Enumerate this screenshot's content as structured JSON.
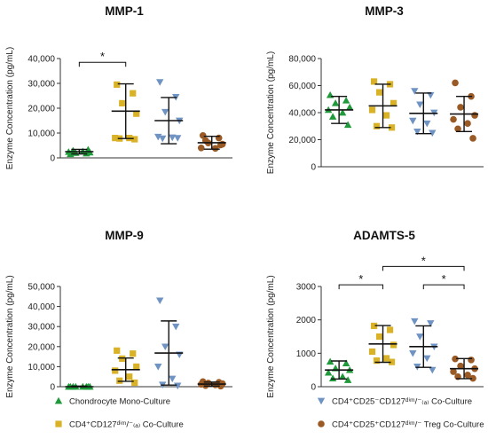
{
  "colors": {
    "chondrocyte": "#1f9a3a",
    "cd4_cd127": "#d9b228",
    "cd4_cd25neg": "#6f93c2",
    "treg": "#9a5a26",
    "axis": "#333333",
    "summary": "#111111"
  },
  "legend": [
    {
      "shape": "triangle",
      "color_key": "chondrocyte",
      "text": "Chondrocyte Mono-Culture"
    },
    {
      "shape": "square",
      "color_key": "cd4_cd127",
      "text": "CD4⁺CD127ᵈⁱᵐ/⁻₍ₐ₎ Co-Culture"
    },
    {
      "shape": "tridown",
      "color_key": "cd4_cd25neg",
      "text": "CD4⁺CD25⁻CD127ᵈⁱᵐ/⁻₍ₐ₎ Co-Culture"
    },
    {
      "shape": "circle",
      "color_key": "treg",
      "text": "CD4⁺CD25⁺CD127ᵈⁱᵐ/⁻ Treg Co-Culture"
    }
  ],
  "chart_data": [
    {
      "type": "scatter",
      "title": "MMP-1",
      "ylabel": "Enzyme Concentration (pg/mL)",
      "ylim": [
        0,
        40000
      ],
      "yticks": [
        0,
        10000,
        20000,
        30000,
        40000
      ],
      "ytick_labels": [
        "0",
        "10,000",
        "20,000",
        "30,000",
        "40,000"
      ],
      "series": [
        {
          "color_key": "chondrocyte",
          "shape": "triangle",
          "mean": 2500,
          "sd": 900,
          "values": [
            1500,
            1800,
            2000,
            2200,
            2400,
            2600,
            2900,
            3300
          ]
        },
        {
          "color_key": "cd4_cd127",
          "shape": "square",
          "mean": 18800,
          "sd": 11000,
          "values": [
            29500,
            26000,
            22000,
            17800,
            8000,
            8000,
            7800,
            7500
          ]
        },
        {
          "color_key": "cd4_cd25neg",
          "shape": "tridown",
          "mean": 15000,
          "sd": 9300,
          "values": [
            30500,
            24500,
            18500,
            15000,
            8500,
            8200,
            7800,
            8000
          ]
        },
        {
          "color_key": "treg",
          "shape": "circle",
          "mean": 6100,
          "sd": 2600,
          "values": [
            9000,
            8000,
            6000,
            5500,
            4000,
            3800,
            7000,
            5200
          ]
        }
      ],
      "significance": [
        {
          "from": 0,
          "to": 1,
          "level": 38500,
          "label": "*"
        }
      ]
    },
    {
      "type": "scatter",
      "title": "MMP-3",
      "ylabel": "Enzyme Concentration (pg/mL)",
      "ylim": [
        0,
        80000
      ],
      "yticks": [
        0,
        20000,
        40000,
        60000,
        80000
      ],
      "ytick_labels": [
        "0",
        "20,000",
        "40,000",
        "60,000",
        "80,000"
      ],
      "series": [
        {
          "color_key": "chondrocyte",
          "shape": "triangle",
          "mean": 42000,
          "sd": 10000,
          "values": [
            53000,
            49000,
            47000,
            44000,
            42000,
            40000,
            37000,
            31000
          ]
        },
        {
          "color_key": "cd4_cd127",
          "shape": "square",
          "mean": 45000,
          "sd": 16000,
          "values": [
            63000,
            61000,
            55000,
            47000,
            42000,
            38000,
            30000,
            29000
          ]
        },
        {
          "color_key": "cd4_cd25neg",
          "shape": "tridown",
          "mean": 39500,
          "sd": 15000,
          "values": [
            56000,
            53000,
            46000,
            40000,
            34000,
            32000,
            26000,
            25000
          ]
        },
        {
          "color_key": "treg",
          "shape": "circle",
          "mean": 39000,
          "sd": 13000,
          "values": [
            62000,
            52000,
            44000,
            38000,
            35000,
            32000,
            28000,
            21000
          ]
        }
      ],
      "significance": []
    },
    {
      "type": "scatter",
      "title": "MMP-9",
      "ylabel": "Enzyme Concentration (pg/mL)",
      "ylim": [
        0,
        50000
      ],
      "yticks": [
        0,
        10000,
        20000,
        30000,
        40000,
        50000
      ],
      "ytick_labels": [
        "0",
        "10,000",
        "20,000",
        "30,000",
        "40,000",
        "50,000"
      ],
      "series": [
        {
          "color_key": "chondrocyte",
          "shape": "triangle",
          "mean": 0,
          "sd": 300,
          "values": [
            0,
            0,
            0,
            0,
            0,
            0,
            0,
            0
          ]
        },
        {
          "color_key": "cd4_cd127",
          "shape": "square",
          "mean": 8500,
          "sd": 5800,
          "values": [
            18000,
            16500,
            14000,
            10000,
            8000,
            5000,
            3000,
            2000
          ]
        },
        {
          "color_key": "cd4_cd25neg",
          "shape": "tridown",
          "mean": 16800,
          "sd": 16000,
          "values": [
            43000,
            30000,
            20000,
            16000,
            10000,
            4000,
            1000,
            500
          ]
        },
        {
          "color_key": "treg",
          "shape": "circle",
          "mean": 1300,
          "sd": 1000,
          "values": [
            2500,
            2200,
            1800,
            1500,
            1200,
            900,
            600,
            300
          ]
        }
      ],
      "significance": []
    },
    {
      "type": "scatter",
      "title": "ADAMTS-5",
      "ylabel": "Enzyme Concentration (pg/mL)",
      "ylim": [
        0,
        3000
      ],
      "yticks": [
        0,
        1000,
        2000,
        3000
      ],
      "ytick_labels": [
        "0",
        "1000",
        "2000",
        "3000"
      ],
      "series": [
        {
          "color_key": "chondrocyte",
          "shape": "triangle",
          "mean": 500,
          "sd": 270,
          "values": [
            750,
            700,
            550,
            500,
            420,
            300,
            250,
            200
          ]
        },
        {
          "color_key": "cd4_cd127",
          "shape": "square",
          "mean": 1280,
          "sd": 550,
          "values": [
            1820,
            1700,
            1500,
            1250,
            1050,
            850,
            780,
            740
          ]
        },
        {
          "color_key": "cd4_cd25neg",
          "shape": "tridown",
          "mean": 1200,
          "sd": 620,
          "values": [
            1960,
            1900,
            1500,
            1200,
            1000,
            850,
            600,
            500
          ]
        },
        {
          "color_key": "treg",
          "shape": "circle",
          "mean": 540,
          "sd": 300,
          "values": [
            830,
            800,
            620,
            540,
            450,
            350,
            300,
            250
          ]
        }
      ],
      "significance": [
        {
          "from": 0,
          "to": 1,
          "level": 3050,
          "label": "*"
        },
        {
          "from": 1,
          "to": 3,
          "level": 3600,
          "label": "*"
        },
        {
          "from": 2,
          "to": 3,
          "level": 3050,
          "label": "*"
        }
      ]
    }
  ]
}
